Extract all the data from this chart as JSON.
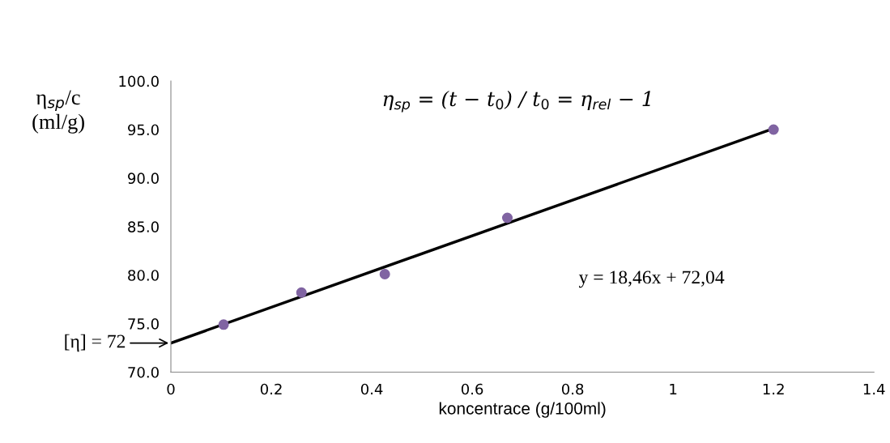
{
  "chart_data": {
    "type": "scatter",
    "xlabel": "koncentrace (g/100ml)",
    "ylabel": "η$_{sp}$/c\n(ml/g)",
    "series": [
      {
        "color": "#8064a2",
        "marker": "circle",
        "x": [
          0.105,
          0.26,
          0.426,
          0.67,
          1.2
        ],
        "values": [
          74.9,
          78.2,
          80.1,
          85.9,
          95.0
        ]
      },
      {
        "type": "line",
        "color": "#000000",
        "marker": "none",
        "x": [
          0,
          1.2
        ],
        "values": [
          73.0,
          95.1
        ]
      }
    ],
    "annotations": [
      "η$_{sp}$ = (t − t$_{0}$) / t$_{0}$ = η$_{rel}$ − 1",
      "y = 18,46x + 72,04",
      {
        "text": "[η] = 72",
        "x": 0,
        "y": 73.0
      }
    ],
    "xlim": [
      0,
      1.4
    ],
    "ylim": [
      70,
      100
    ],
    "xticks": [
      0,
      0.2,
      0.4,
      0.6,
      0.8,
      1,
      1.2,
      1.4
    ],
    "yticks": [
      {
        "value": 70,
        "label": "70.0"
      },
      {
        "value": 75,
        "label": "75.0"
      },
      {
        "value": 80,
        "label": "80.0"
      },
      {
        "value": 85,
        "label": "85.0"
      },
      {
        "value": 90,
        "label": "90.0"
      },
      {
        "value": 95,
        "label": "95.0"
      },
      {
        "value": 100,
        "label": "100.0"
      }
    ],
    "grid": false,
    "legend": false
  }
}
